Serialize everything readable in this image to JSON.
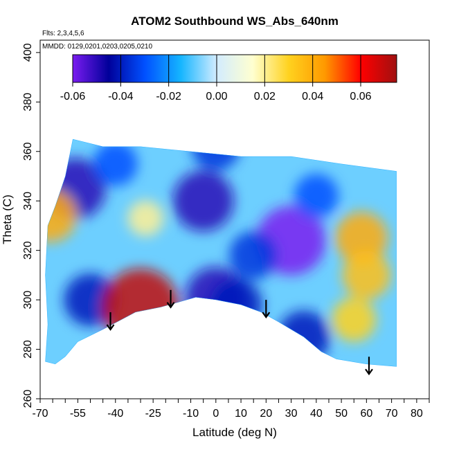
{
  "chart_data": {
    "type": "heatmap",
    "title": "ATOM2 Southbound WS_Abs_640nm",
    "subtitle_lines": [
      "Flts: 2,3,4,5,6",
      "MMDD: 0129,0201,0203,0205,0210"
    ],
    "xlabel": "Latitude (deg N)",
    "ylabel": "Theta (C)",
    "xlim": [
      -70,
      85
    ],
    "ylim": [
      260,
      405
    ],
    "x_major_ticks": [
      -70,
      -55,
      -40,
      -25,
      -10,
      0,
      10,
      20,
      30,
      40,
      50,
      60,
      70,
      80
    ],
    "x_minor_ticks": [
      -65,
      -60,
      -50,
      -45,
      -35,
      -30,
      -20,
      -15,
      -5,
      5,
      15,
      25,
      35,
      45,
      55,
      65,
      75,
      85
    ],
    "y_ticks": [
      260,
      280,
      300,
      320,
      340,
      360,
      380,
      400
    ],
    "colorbar": {
      "range": [
        -0.06,
        0.075
      ],
      "tick_values": [
        -0.06,
        -0.04,
        -0.02,
        0.0,
        0.02,
        0.04,
        0.06
      ],
      "tick_labels": [
        "-0.06",
        "-0.04",
        "-0.02",
        "0.00",
        "0.02",
        "0.04",
        "0.06"
      ],
      "colors": [
        "#7a1cf0",
        "#00009a",
        "#0050ff",
        "#15b5ff",
        "#d2ecff",
        "#ffffd0",
        "#ffd21f",
        "#ff9900",
        "#ff0000",
        "#a01010"
      ]
    },
    "field_boundary": [
      [
        -68,
        275
      ],
      [
        -67,
        290
      ],
      [
        -68,
        310
      ],
      [
        -67,
        330
      ],
      [
        -64,
        338
      ],
      [
        -60,
        350
      ],
      [
        -57,
        365
      ],
      [
        -45,
        362
      ],
      [
        -30,
        362
      ],
      [
        -10,
        360
      ],
      [
        10,
        358
      ],
      [
        30,
        358
      ],
      [
        50,
        355
      ],
      [
        72,
        352
      ],
      [
        72,
        273
      ],
      [
        60,
        274
      ],
      [
        48,
        276
      ],
      [
        42,
        279
      ],
      [
        35,
        285
      ],
      [
        25,
        291
      ],
      [
        18,
        295
      ],
      [
        10,
        298
      ],
      [
        0,
        300
      ],
      [
        -8,
        301
      ],
      [
        -15,
        299
      ],
      [
        -22,
        297
      ],
      [
        -32,
        295
      ],
      [
        -45,
        288
      ],
      [
        -55,
        283
      ],
      [
        -60,
        277
      ],
      [
        -64,
        274
      ]
    ],
    "anomalies": [
      {
        "lat": -56,
        "theta": 345,
        "value": -0.05
      },
      {
        "lat": -50,
        "theta": 300,
        "value": -0.04
      },
      {
        "lat": -66,
        "theta": 334,
        "value": 0.04
      },
      {
        "lat": -28,
        "theta": 333,
        "value": 0.02
      },
      {
        "lat": -30,
        "theta": 297,
        "value": 0.07
      },
      {
        "lat": -5,
        "theta": 340,
        "value": -0.05
      },
      {
        "lat": 0,
        "theta": 301,
        "value": -0.05
      },
      {
        "lat": 8,
        "theta": 298,
        "value": -0.04
      },
      {
        "lat": 30,
        "theta": 324,
        "value": -0.06
      },
      {
        "lat": 15,
        "theta": 318,
        "value": -0.035
      },
      {
        "lat": 40,
        "theta": 342,
        "value": -0.03
      },
      {
        "lat": 35,
        "theta": 285,
        "value": -0.04
      },
      {
        "lat": 58,
        "theta": 325,
        "value": 0.04
      },
      {
        "lat": 55,
        "theta": 292,
        "value": 0.03
      },
      {
        "lat": 60,
        "theta": 310,
        "value": 0.035
      },
      {
        "lat": -40,
        "theta": 355,
        "value": -0.03
      },
      {
        "lat": 0,
        "theta": 362,
        "value": -0.035
      }
    ],
    "arrows": [
      {
        "lat": -42,
        "theta_top": 295,
        "theta_tip": 288
      },
      {
        "lat": -18,
        "theta_top": 304,
        "theta_tip": 297
      },
      {
        "lat": 20,
        "theta_top": 300,
        "theta_tip": 293
      },
      {
        "lat": 61,
        "theta_top": 277,
        "theta_tip": 270
      }
    ]
  }
}
